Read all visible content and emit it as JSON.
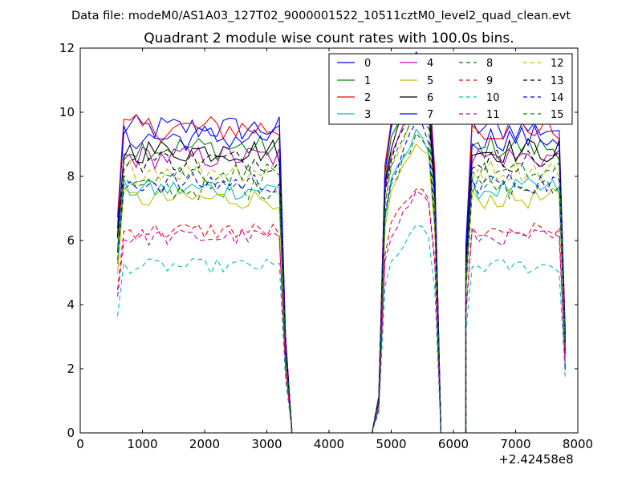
{
  "chart_data": {
    "type": "line",
    "suptitle": "Data file: modeM0/AS1A03_127T02_9000001522_10511cztM0_level2_quad_clean.evt",
    "title": "Quadrant 2 module wise count rates with 100.0s bins.",
    "xlabel": "",
    "ylabel": "",
    "x_offset_label": "+2.42458e8",
    "xlim": [
      0,
      8000
    ],
    "ylim": [
      0,
      12
    ],
    "xticks": [
      0,
      1000,
      2000,
      3000,
      4000,
      5000,
      6000,
      7000,
      8000
    ],
    "yticks": [
      0,
      2,
      4,
      6,
      8,
      10,
      12
    ],
    "xtick_labels": [
      "0",
      "1000",
      "2000",
      "3000",
      "4000",
      "5000",
      "6000",
      "7000",
      "8000"
    ],
    "ytick_labels": [
      "0",
      "2",
      "4",
      "6",
      "8",
      "10",
      "12"
    ],
    "legend_position": "top-right",
    "series": [
      {
        "name": "0",
        "color": "#0000ff",
        "dash": "solid",
        "level": 9.5
      },
      {
        "name": "1",
        "color": "#008000",
        "dash": "solid",
        "level": 8.9
      },
      {
        "name": "2",
        "color": "#ff0000",
        "dash": "solid",
        "level": 9.5
      },
      {
        "name": "3",
        "color": "#00bfbf",
        "dash": "solid",
        "level": 7.6
      },
      {
        "name": "4",
        "color": "#bf00bf",
        "dash": "solid",
        "level": 8.6
      },
      {
        "name": "5",
        "color": "#bfbf00",
        "dash": "solid",
        "level": 7.3
      },
      {
        "name": "6",
        "color": "#000000",
        "dash": "solid",
        "level": 8.8
      },
      {
        "name": "7",
        "color": "#0000ff",
        "dash": "solid",
        "level": 9.2
      },
      {
        "name": "8",
        "color": "#008000",
        "dash": "dashed",
        "level": 7.6
      },
      {
        "name": "9",
        "color": "#ff0000",
        "dash": "dashed",
        "level": 6.3
      },
      {
        "name": "10",
        "color": "#00bfbf",
        "dash": "dashed",
        "level": 5.2
      },
      {
        "name": "11",
        "color": "#bf00bf",
        "dash": "dashed",
        "level": 6.1
      },
      {
        "name": "12",
        "color": "#bfbf00",
        "dash": "dashed",
        "level": 8.2
      },
      {
        "name": "13",
        "color": "#000000",
        "dash": "dashed",
        "level": 8.5
      },
      {
        "name": "14",
        "color": "#0000ff",
        "dash": "dashed",
        "level": 7.8
      },
      {
        "name": "15",
        "color": "#008000",
        "dash": "dashed",
        "level": 8.1
      }
    ],
    "segments": [
      {
        "x_start": 600,
        "x_end": 3400,
        "shape": "flat",
        "rise_to": 0.7
      },
      {
        "x_start": 4700,
        "x_end": 5800,
        "shape": "peak",
        "peak_x": 5450,
        "peak_boost": 1.25
      },
      {
        "x_start": 6200,
        "x_end": 7850,
        "shape": "flat",
        "rise_to": 0.6
      }
    ],
    "bin_width": 100
  }
}
